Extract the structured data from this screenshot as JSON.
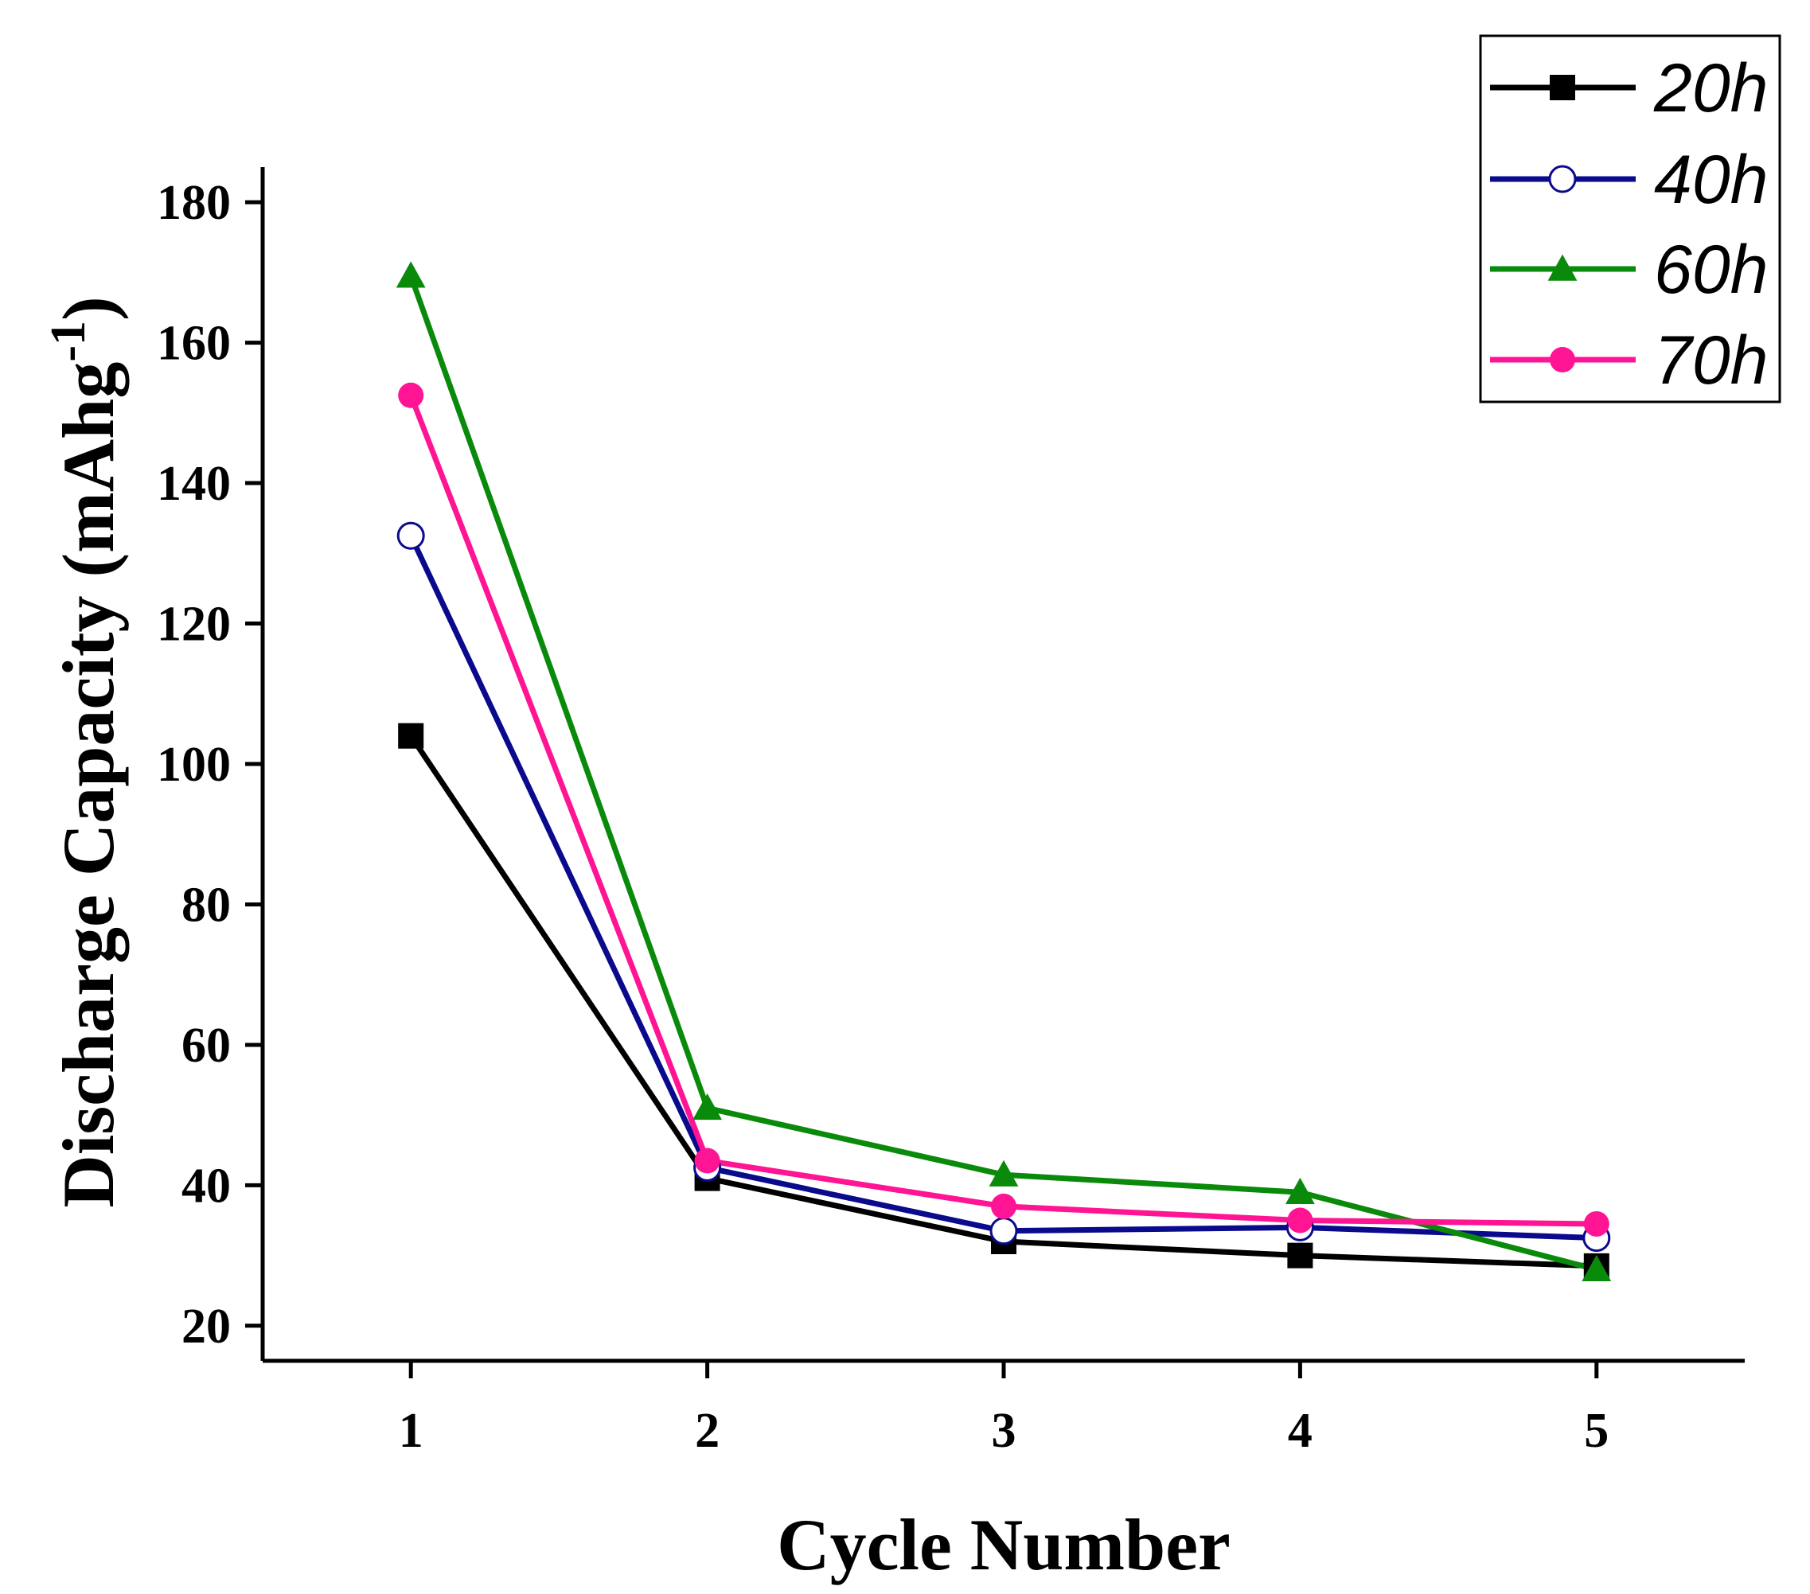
{
  "chart_data": {
    "type": "line",
    "title": "",
    "xlabel": "Cycle Number",
    "ylabel_main": "Discharge Capacity (mAhg",
    "ylabel_sup": "-1",
    "ylabel_close": ")",
    "x": [
      1,
      2,
      3,
      4,
      5
    ],
    "xlim": [
      0.5,
      5.5
    ],
    "ylim": [
      15,
      185
    ],
    "xticks": [
      "1",
      "2",
      "3",
      "4",
      "5"
    ],
    "yticks": [
      "20",
      "40",
      "60",
      "80",
      "100",
      "120",
      "140",
      "160",
      "180"
    ],
    "ytick_values": [
      20,
      40,
      60,
      80,
      100,
      120,
      140,
      160,
      180
    ],
    "grid": false,
    "legend_position": "top-right",
    "series": [
      {
        "name": "20h",
        "color": "#000000",
        "marker": "square",
        "values": [
          104,
          41,
          32,
          30,
          28.5
        ]
      },
      {
        "name": "40h",
        "color": "#0a0a8c",
        "marker": "open-circle",
        "values": [
          132.5,
          42.5,
          33.5,
          34,
          32.5
        ]
      },
      {
        "name": "60h",
        "color": "#0a8a0a",
        "marker": "triangle",
        "values": [
          169.5,
          51,
          41.5,
          39,
          28
        ]
      },
      {
        "name": "70h",
        "color": "#ff1493",
        "marker": "circle",
        "values": [
          152.5,
          43.5,
          37,
          35,
          34.5
        ]
      }
    ]
  }
}
